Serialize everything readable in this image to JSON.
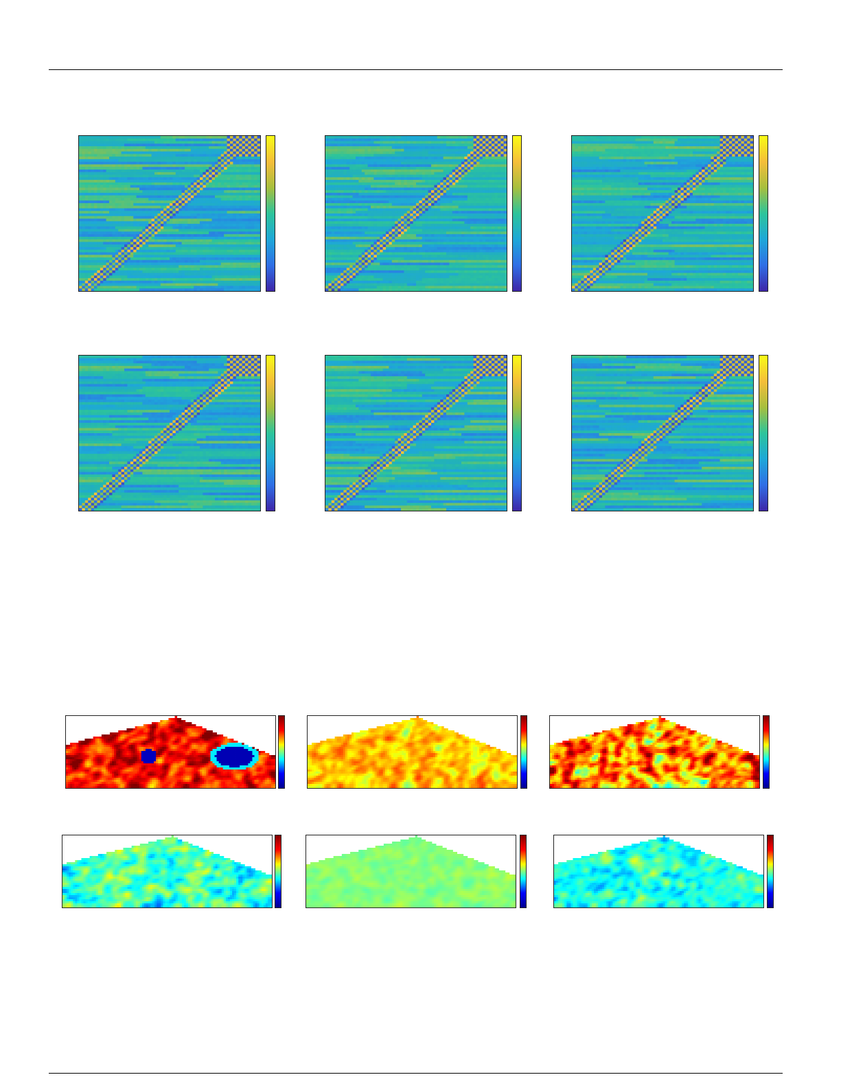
{
  "figure_top": {
    "rows": 2,
    "cols": 3,
    "colormap": "parula",
    "colors": {
      "low": "#3e26a8",
      "mid": "#22b2b8",
      "high": "#f9fb15"
    },
    "panels": [
      {
        "id": "top-r1c1",
        "row": 1,
        "col": 1
      },
      {
        "id": "top-r1c2",
        "row": 1,
        "col": 2
      },
      {
        "id": "top-r1c3",
        "row": 1,
        "col": 3
      },
      {
        "id": "top-r2c1",
        "row": 2,
        "col": 1
      },
      {
        "id": "top-r2c2",
        "row": 2,
        "col": 2
      },
      {
        "id": "top-r2c3",
        "row": 2,
        "col": 3
      }
    ]
  },
  "figure_bottom": {
    "rows": 2,
    "cols": 3,
    "colormap": "jet",
    "colors": {
      "low": "#00008f",
      "mid": "#00e5e5",
      "high": "#ffff00",
      "max": "#800000"
    },
    "panels": [
      {
        "id": "bot-r1c1",
        "row": 1,
        "col": 1,
        "dominant": "red"
      },
      {
        "id": "bot-r1c2",
        "row": 1,
        "col": 2,
        "dominant": "yellow"
      },
      {
        "id": "bot-r1c3",
        "row": 1,
        "col": 3,
        "dominant": "orange"
      },
      {
        "id": "bot-r2c1",
        "row": 2,
        "col": 1,
        "dominant": "cyan"
      },
      {
        "id": "bot-r2c2",
        "row": 2,
        "col": 2,
        "dominant": "aqua"
      },
      {
        "id": "bot-r2c3",
        "row": 2,
        "col": 3,
        "dominant": "cyan"
      }
    ]
  }
}
